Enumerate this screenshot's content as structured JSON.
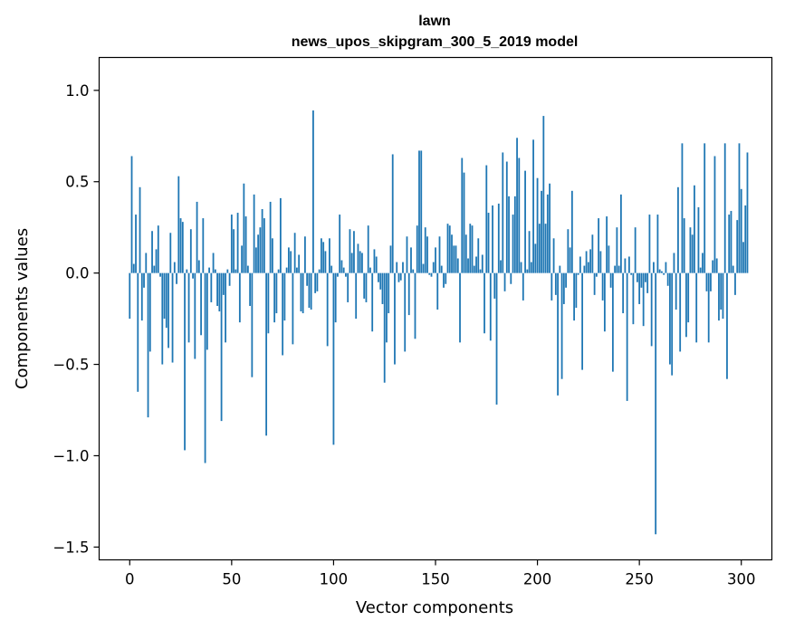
{
  "chart_data": {
    "type": "bar",
    "title_line1": "lawn",
    "title_line2": "news_upos_skipgram_300_5_2019 model",
    "xlabel": "Vector components",
    "ylabel": "Components values",
    "xlim": [
      -15,
      315
    ],
    "ylim": [
      -1.57,
      1.18
    ],
    "xticks": [
      0,
      50,
      100,
      150,
      200,
      250,
      300
    ],
    "xtick_labels": [
      "0",
      "50",
      "100",
      "150",
      "200",
      "250",
      "300"
    ],
    "yticks": [
      -1.5,
      -1.0,
      -0.5,
      0.0,
      0.5,
      1.0
    ],
    "ytick_labels": [
      "−1.5",
      "−1.0",
      "−0.5",
      "0.0",
      "0.5",
      "1.0"
    ],
    "bar_color": "#1f77b4",
    "bar_width": 0.8,
    "grid": false,
    "values": [
      -0.25,
      0.64,
      0.05,
      0.32,
      -0.65,
      0.47,
      -0.26,
      -0.08,
      0.11,
      -0.79,
      -0.43,
      0.23,
      0.04,
      0.13,
      0.26,
      -0.02,
      -0.5,
      -0.25,
      -0.3,
      -0.41,
      0.22,
      -0.49,
      0.06,
      -0.06,
      0.53,
      0.3,
      0.28,
      -0.97,
      0.02,
      -0.38,
      0.24,
      -0.03,
      -0.47,
      0.39,
      0.07,
      -0.34,
      0.3,
      -1.04,
      -0.42,
      0.03,
      -0.16,
      0.11,
      0.02,
      -0.18,
      -0.21,
      -0.81,
      -0.12,
      -0.38,
      0.02,
      -0.07,
      0.32,
      0.24,
      0.02,
      0.33,
      -0.27,
      0.15,
      0.49,
      0.31,
      0.04,
      -0.18,
      -0.57,
      0.43,
      0.14,
      0.21,
      0.25,
      0.35,
      0.3,
      -0.89,
      -0.33,
      0.39,
      0.19,
      -0.27,
      -0.22,
      0.02,
      0.41,
      -0.45,
      -0.26,
      0.03,
      0.14,
      0.12,
      -0.39,
      0.22,
      0.03,
      0.1,
      -0.21,
      -0.22,
      0.2,
      -0.07,
      -0.19,
      -0.2,
      0.89,
      -0.11,
      -0.1,
      0.02,
      0.19,
      0.17,
      0.12,
      -0.4,
      0.19,
      0.04,
      -0.94,
      -0.27,
      -0.02,
      0.32,
      0.07,
      0.03,
      -0.02,
      -0.16,
      0.24,
      0.11,
      0.23,
      -0.25,
      0.16,
      0.12,
      0.11,
      -0.14,
      -0.16,
      0.26,
      0.03,
      -0.32,
      0.13,
      0.09,
      -0.05,
      -0.09,
      -0.17,
      -0.6,
      -0.38,
      -0.22,
      0.15,
      0.65,
      -0.5,
      0.06,
      -0.05,
      -0.04,
      0.06,
      -0.43,
      0.2,
      -0.23,
      0.14,
      0.02,
      -0.36,
      0.26,
      0.67,
      0.67,
      0.05,
      0.25,
      0.2,
      -0.01,
      -0.02,
      0.06,
      0.14,
      -0.2,
      0.2,
      0.04,
      -0.08,
      -0.06,
      0.27,
      0.26,
      0.21,
      0.15,
      0.15,
      0.08,
      -0.38,
      0.63,
      0.55,
      0.21,
      0.08,
      0.27,
      0.26,
      0.04,
      0.09,
      0.19,
      0.02,
      0.1,
      -0.33,
      0.59,
      0.33,
      -0.37,
      0.37,
      -0.14,
      -0.72,
      0.38,
      0.07,
      0.66,
      -0.1,
      0.61,
      0.42,
      -0.06,
      0.32,
      0.42,
      0.74,
      0.63,
      0.06,
      -0.15,
      0.56,
      0.02,
      0.23,
      0.06,
      0.73,
      0.16,
      0.52,
      0.27,
      0.45,
      0.86,
      0.27,
      0.43,
      0.49,
      -0.15,
      0.19,
      -0.12,
      -0.67,
      0.04,
      -0.58,
      -0.17,
      -0.08,
      0.24,
      0.14,
      0.45,
      -0.26,
      -0.19,
      -0.01,
      0.09,
      -0.53,
      0.04,
      0.12,
      0.06,
      0.13,
      0.21,
      -0.12,
      -0.02,
      0.3,
      0.12,
      -0.15,
      -0.32,
      0.31,
      0.15,
      -0.08,
      -0.54,
      0.04,
      0.25,
      0.04,
      0.43,
      -0.22,
      0.08,
      -0.7,
      0.09,
      -0.01,
      -0.28,
      0.25,
      -0.05,
      -0.17,
      -0.08,
      -0.29,
      -0.05,
      -0.11,
      0.32,
      -0.4,
      0.06,
      -1.43,
      0.32,
      0.02,
      0.01,
      -0.01,
      0.06,
      -0.07,
      -0.5,
      -0.56,
      0.11,
      -0.2,
      0.47,
      -0.43,
      0.71,
      0.3,
      -0.35,
      -0.27,
      0.25,
      0.21,
      0.48,
      -0.38,
      0.36,
      0.03,
      0.11,
      0.71,
      -0.1,
      -0.38,
      -0.1,
      0.07,
      0.64,
      0.08,
      -0.26,
      -0.2,
      -0.25,
      0.71,
      -0.58,
      0.32,
      0.34,
      0.04,
      -0.12,
      0.29,
      0.71,
      0.46,
      0.17,
      0.37,
      0.66
    ]
  }
}
